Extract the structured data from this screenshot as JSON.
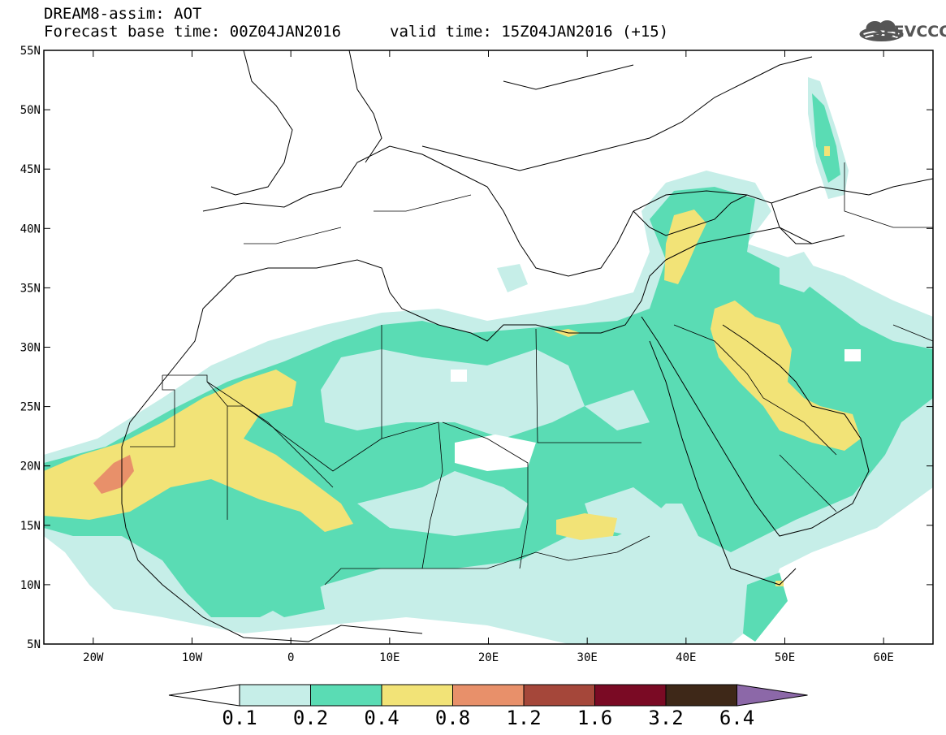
{
  "title": {
    "line1": "DREAM8-assim: AOT",
    "line2": "Forecast base time: 00Z04JAN2016",
    "line3": "valid time: 15Z04JAN2016 (+15)"
  },
  "logo": {
    "text": "SEEVCCC",
    "icon": "cloud-icon"
  },
  "map": {
    "lon_range": [
      -25,
      65
    ],
    "lat_range": [
      5,
      55
    ],
    "y_ticks": [
      "55N",
      "50N",
      "45N",
      "40N",
      "35N",
      "30N",
      "25N",
      "20N",
      "15N",
      "10N",
      "5N"
    ],
    "x_ticks": [
      "20W",
      "10W",
      "0",
      "10E",
      "20E",
      "30E",
      "40E",
      "50E",
      "60E"
    ],
    "grid": false
  },
  "colorbar": {
    "levels": [
      "0.1",
      "0.2",
      "0.4",
      "0.8",
      "1.2",
      "1.6",
      "3.2",
      "6.4"
    ],
    "colors": [
      "#ffffff",
      "#c6eee8",
      "#5adcb4",
      "#f2e377",
      "#e8906a",
      "#a5473a",
      "#7a0a24",
      "#3e2818",
      "#8c68a8"
    ]
  }
}
